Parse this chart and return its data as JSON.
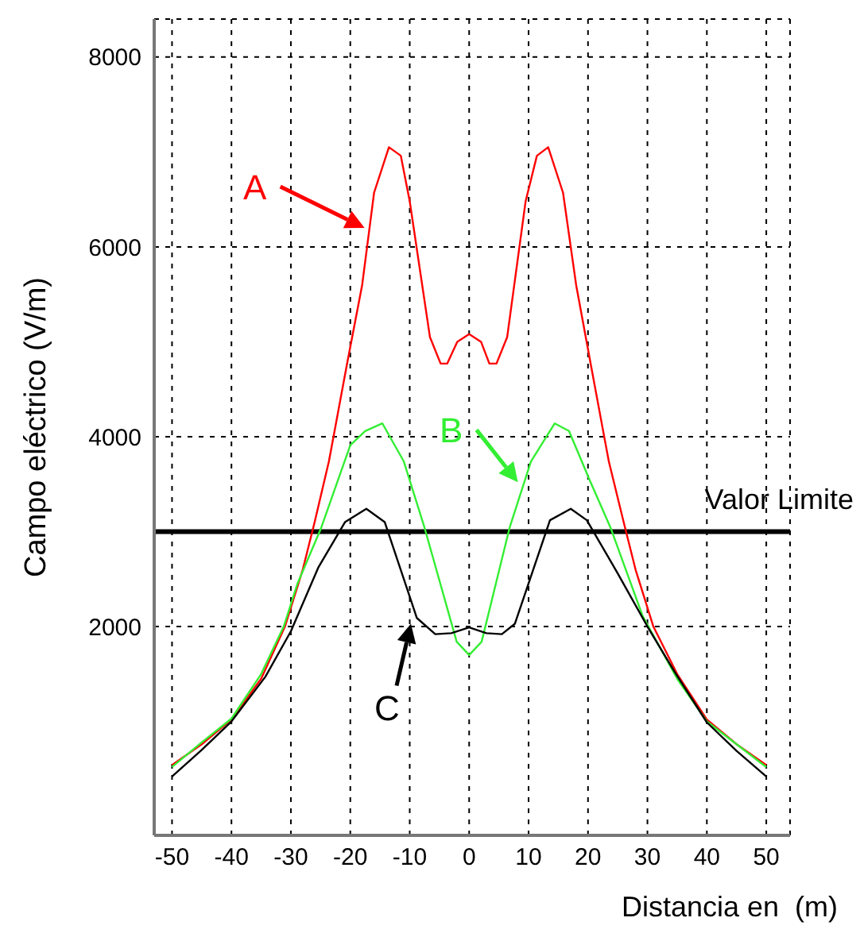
{
  "chart_data": {
    "type": "line",
    "xlabel": "Distancia en  (m)",
    "ylabel": "Campo eléctrico (V/m)",
    "xlim": [
      -53,
      54
    ],
    "ylim": [
      -200,
      8400
    ],
    "xticks": [
      -50,
      -40,
      -30,
      -20,
      -10,
      0,
      10,
      20,
      30,
      40,
      50
    ],
    "yticks": [
      2000,
      4000,
      6000,
      8000
    ],
    "grid": true,
    "legend": false,
    "marker": "none",
    "line_style": "solid",
    "series": [
      {
        "color": "#ff0000",
        "x": [
          -50,
          -45,
          -40,
          -35,
          -31,
          -28,
          -26,
          -23.6,
          -20.6,
          -18,
          -16,
          -13.5,
          -11.5,
          -10,
          -6.6,
          -4.8,
          -3.7,
          -2,
          0,
          2,
          3.4,
          4.6,
          6.4,
          9.5,
          11.4,
          13.3,
          15.8,
          18,
          20.5,
          23.5,
          26,
          28,
          31,
          35,
          40,
          45,
          50
        ],
        "values": [
          540,
          760,
          1020,
          1450,
          2000,
          2600,
          3100,
          3740,
          4750,
          5600,
          6570,
          7050,
          6960,
          6480,
          5050,
          4770,
          4770,
          5000,
          5080,
          5000,
          4770,
          4770,
          5050,
          6480,
          6960,
          7050,
          6570,
          5600,
          4750,
          3740,
          3100,
          2600,
          2000,
          1500,
          1020,
          760,
          540
        ]
      },
      {
        "color": "#33ee33",
        "x": [
          -50,
          -45,
          -40,
          -35,
          -31.2,
          -28.9,
          -24.9,
          -20,
          -17.5,
          -14.6,
          -11,
          -7.5,
          -2.1,
          0,
          2.1,
          6.8,
          10.4,
          14.4,
          16.8,
          20.3,
          23.8,
          29.2,
          35,
          40,
          45,
          50
        ],
        "values": [
          520,
          780,
          1030,
          1500,
          2000,
          2450,
          3040,
          3910,
          4060,
          4140,
          3740,
          3040,
          1840,
          1700,
          1840,
          3040,
          3740,
          4140,
          4060,
          3540,
          3040,
          2110,
          1450,
          1000,
          760,
          520
        ]
      },
      {
        "color": "#000000",
        "x": [
          -50,
          -45,
          -40,
          -34.3,
          -30,
          -25.4,
          -20.9,
          -17.3,
          -14.2,
          -8.8,
          -5.7,
          -3,
          0,
          2.9,
          5.5,
          7.7,
          13.6,
          17.1,
          19.8,
          25,
          30,
          34.6,
          40,
          45,
          50
        ],
        "values": [
          420,
          700,
          1000,
          1470,
          1950,
          2620,
          3100,
          3240,
          3100,
          2090,
          1920,
          1930,
          1990,
          1930,
          1920,
          2030,
          3120,
          3240,
          3120,
          2560,
          2000,
          1520,
          990,
          690,
          420
        ]
      }
    ],
    "ref_lines": [
      {
        "axis": "y",
        "value": 3000,
        "label": "Valor Limite",
        "color": "#000000"
      }
    ],
    "annotations": [
      {
        "text": "A",
        "x": -17.6,
        "y": 6200
      },
      {
        "text": "B",
        "x": 8.2,
        "y": 3520
      },
      {
        "text": "C",
        "x": -9.8,
        "y": 2030
      }
    ]
  }
}
